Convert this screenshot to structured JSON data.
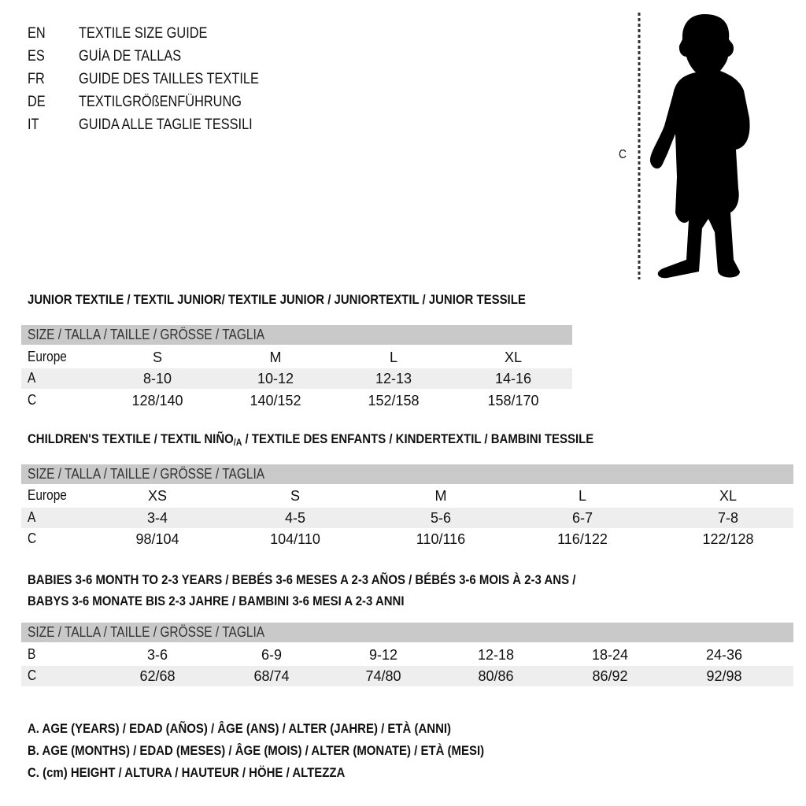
{
  "languages": [
    {
      "code": "EN",
      "title": "TEXTILE SIZE GUIDE"
    },
    {
      "code": "ES",
      "title": "GUÍA DE TALLAS"
    },
    {
      "code": "FR",
      "title": "GUIDE DES TAILLES TEXTILE"
    },
    {
      "code": "DE",
      "title": "TEXTILGRÖßENFÜHRUNG"
    },
    {
      "code": "IT",
      "title": "GUIDA ALLE TAGLIE TESSILI"
    }
  ],
  "figure": {
    "measure_label": "C"
  },
  "size_header": "SIZE / TALLA / TAILLE / GRÖSSE / TAGLIA",
  "junior": {
    "heading": "JUNIOR TEXTILE / TEXTIL JUNIOR/ TEXTILE JUNIOR / JUNIORTEXTIL / JUNIOR TESSILE",
    "rows": [
      {
        "label": "Europe",
        "values": [
          "S",
          "M",
          "L",
          "XL"
        ]
      },
      {
        "label": "A",
        "values": [
          "8-10",
          "10-12",
          "12-13",
          "14-16"
        ]
      },
      {
        "label": "C",
        "values": [
          "128/140",
          "140/152",
          "152/158",
          "158/170"
        ]
      }
    ]
  },
  "children": {
    "heading_a": "CHILDREN'S TEXTILE / TEXTIL NIÑO",
    "heading_sub": "/A",
    "heading_b": " / TEXTILE DES ENFANTS / KINDERTEXTIL / BAMBINI TESSILE",
    "rows": [
      {
        "label": "Europe",
        "values": [
          "XS",
          "S",
          "M",
          "L",
          "XL"
        ]
      },
      {
        "label": "A",
        "values": [
          "3-4",
          "4-5",
          "5-6",
          "6-7",
          "7-8"
        ]
      },
      {
        "label": "C",
        "values": [
          "98/104",
          "104/110",
          "110/116",
          "116/122",
          "122/128"
        ]
      }
    ]
  },
  "babies": {
    "heading_1": "BABIES 3-6 MONTH TO 2-3 YEARS / BEBÉS 3-6 MESES A 2-3 AÑOS / BÉBÉS 3-6 MOIS À 2-3 ANS /",
    "heading_2": "BABYS 3-6 MONATE BIS 2-3 JAHRE / BAMBINI 3-6 MESI A 2-3 ANNI",
    "rows": [
      {
        "label": "B",
        "values": [
          "3-6",
          "6-9",
          "9-12",
          "12-18",
          "18-24",
          "24-36"
        ]
      },
      {
        "label": "C",
        "values": [
          "62/68",
          "68/74",
          "74/80",
          "80/86",
          "86/92",
          "92/98"
        ]
      }
    ]
  },
  "legend": [
    "A. AGE (YEARS) / EDAD (AÑOS) / ÂGE (ANS) / ALTER (JAHRE) / ETÀ (ANNI)",
    "B. AGE (MONTHS) / EDAD (MESES) / ÂGE (MOIS) / ALTER (MONATE) / ETÀ (MESI)",
    "C. (cm) HEIGHT / ALTURA / HAUTEUR / HÖHE / ALTEZZA"
  ]
}
